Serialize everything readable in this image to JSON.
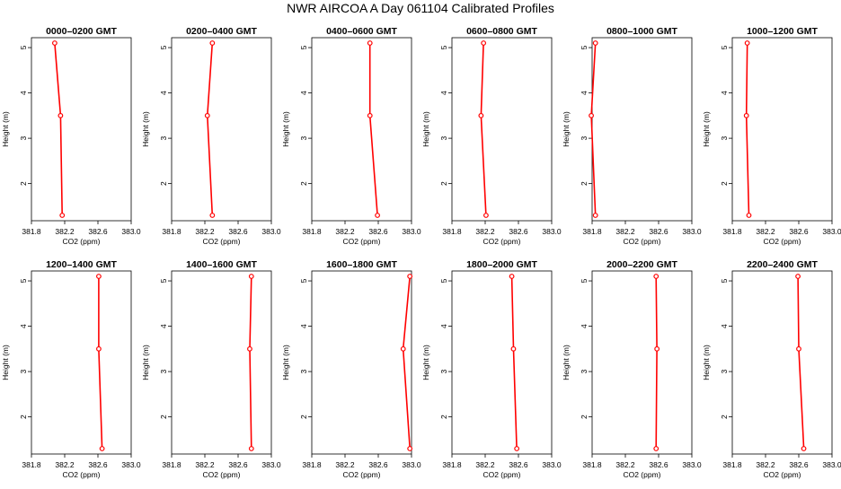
{
  "figure": {
    "title": "NWR AIRCOA A  Day 061104  Calibrated Profiles"
  },
  "colors": {
    "series": "#ff0000",
    "axis": "#000000"
  },
  "chart_data": [
    {
      "type": "line",
      "title": "0000–0200 GMT",
      "xlabel": "CO2 (ppm)",
      "ylabel": "Height (m)",
      "xlim": [
        381.8,
        383.0
      ],
      "ylim": [
        1.3,
        5.1
      ],
      "xticks": [
        "381.8",
        "382.2",
        "382.6",
        "383.0"
      ],
      "yticks": [
        "2",
        "3",
        "4",
        "5"
      ],
      "series": [
        {
          "x": [
            382.08,
            382.15,
            382.17
          ],
          "y": [
            5.1,
            3.5,
            1.3
          ]
        }
      ]
    },
    {
      "type": "line",
      "title": "0200–0400 GMT",
      "xlabel": "CO2 (ppm)",
      "ylabel": "Height (m)",
      "xlim": [
        381.8,
        383.0
      ],
      "ylim": [
        1.3,
        5.1
      ],
      "xticks": [
        "381.8",
        "382.2",
        "382.6",
        "383.0"
      ],
      "yticks": [
        "2",
        "3",
        "4",
        "5"
      ],
      "series": [
        {
          "x": [
            382.29,
            382.23,
            382.29
          ],
          "y": [
            5.1,
            3.5,
            1.3
          ]
        }
      ]
    },
    {
      "type": "line",
      "title": "0400–0600 GMT",
      "xlabel": "CO2 (ppm)",
      "ylabel": "Height (m)",
      "xlim": [
        381.8,
        383.0
      ],
      "ylim": [
        1.3,
        5.1
      ],
      "xticks": [
        "381.8",
        "382.2",
        "382.6",
        "383.0"
      ],
      "yticks": [
        "2",
        "3",
        "4",
        "5"
      ],
      "series": [
        {
          "x": [
            382.5,
            382.5,
            382.59
          ],
          "y": [
            5.1,
            3.5,
            1.3
          ]
        }
      ]
    },
    {
      "type": "line",
      "title": "0600–0800 GMT",
      "xlabel": "CO2 (ppm)",
      "ylabel": "Height (m)",
      "xlim": [
        381.8,
        383.0
      ],
      "ylim": [
        1.3,
        5.1
      ],
      "xticks": [
        "381.8",
        "382.2",
        "382.6",
        "383.0"
      ],
      "yticks": [
        "2",
        "3",
        "4",
        "5"
      ],
      "series": [
        {
          "x": [
            382.18,
            382.15,
            382.21
          ],
          "y": [
            5.1,
            3.5,
            1.3
          ]
        }
      ]
    },
    {
      "type": "line",
      "title": "0800–1000 GMT",
      "xlabel": "CO2 (ppm)",
      "ylabel": "Height (m)",
      "xlim": [
        381.8,
        383.0
      ],
      "ylim": [
        1.3,
        5.1
      ],
      "xticks": [
        "381.8",
        "382.2",
        "382.6",
        "383.0"
      ],
      "yticks": [
        "2",
        "3",
        "4",
        "5"
      ],
      "series": [
        {
          "x": [
            381.84,
            381.79,
            381.84
          ],
          "y": [
            5.1,
            3.5,
            1.3
          ]
        }
      ]
    },
    {
      "type": "line",
      "title": "1000–1200 GMT",
      "xlabel": "CO2 (ppm)",
      "ylabel": "Height (m)",
      "xlim": [
        381.8,
        383.0
      ],
      "ylim": [
        1.3,
        5.1
      ],
      "xticks": [
        "381.8",
        "382.2",
        "382.6",
        "383.0"
      ],
      "yticks": [
        "2",
        "3",
        "4",
        "5"
      ],
      "series": [
        {
          "x": [
            381.98,
            381.97,
            382.0
          ],
          "y": [
            5.1,
            3.5,
            1.3
          ]
        }
      ]
    },
    {
      "type": "line",
      "title": "1200–1400 GMT",
      "xlabel": "CO2 (ppm)",
      "ylabel": "Height (m)",
      "xlim": [
        381.8,
        383.0
      ],
      "ylim": [
        1.3,
        5.1
      ],
      "xticks": [
        "381.8",
        "382.2",
        "382.6",
        "383.0"
      ],
      "yticks": [
        "2",
        "3",
        "4",
        "5"
      ],
      "series": [
        {
          "x": [
            382.61,
            382.61,
            382.65
          ],
          "y": [
            5.1,
            3.5,
            1.3
          ]
        }
      ]
    },
    {
      "type": "line",
      "title": "1400–1600 GMT",
      "xlabel": "CO2 (ppm)",
      "ylabel": "Height (m)",
      "xlim": [
        381.8,
        383.0
      ],
      "ylim": [
        1.3,
        5.1
      ],
      "xticks": [
        "381.8",
        "382.2",
        "382.6",
        "383.0"
      ],
      "yticks": [
        "2",
        "3",
        "4",
        "5"
      ],
      "series": [
        {
          "x": [
            382.76,
            382.74,
            382.76
          ],
          "y": [
            5.1,
            3.5,
            1.3
          ]
        }
      ]
    },
    {
      "type": "line",
      "title": "1600–1800 GMT",
      "xlabel": "CO2 (ppm)",
      "ylabel": "Height (m)",
      "xlim": [
        381.8,
        383.0
      ],
      "ylim": [
        1.3,
        5.1
      ],
      "xticks": [
        "381.8",
        "382.2",
        "382.6",
        "383.0"
      ],
      "yticks": [
        "2",
        "3",
        "4",
        "5"
      ],
      "series": [
        {
          "x": [
            382.98,
            382.9,
            382.98
          ],
          "y": [
            5.1,
            3.5,
            1.3
          ]
        }
      ]
    },
    {
      "type": "line",
      "title": "1800–2000 GMT",
      "xlabel": "CO2 (ppm)",
      "ylabel": "Height (m)",
      "xlim": [
        381.8,
        383.0
      ],
      "ylim": [
        1.3,
        5.1
      ],
      "xticks": [
        "381.8",
        "382.2",
        "382.6",
        "383.0"
      ],
      "yticks": [
        "2",
        "3",
        "4",
        "5"
      ],
      "series": [
        {
          "x": [
            382.52,
            382.54,
            382.58
          ],
          "y": [
            5.1,
            3.5,
            1.3
          ]
        }
      ]
    },
    {
      "type": "line",
      "title": "2000–2200 GMT",
      "xlabel": "CO2 (ppm)",
      "ylabel": "Height (m)",
      "xlim": [
        381.8,
        383.0
      ],
      "ylim": [
        1.3,
        5.1
      ],
      "xticks": [
        "381.8",
        "382.2",
        "382.6",
        "383.0"
      ],
      "yticks": [
        "2",
        "3",
        "4",
        "5"
      ],
      "series": [
        {
          "x": [
            382.57,
            382.58,
            382.57
          ],
          "y": [
            5.1,
            3.5,
            1.3
          ]
        }
      ]
    },
    {
      "type": "line",
      "title": "2200–2400 GMT",
      "xlabel": "CO2 (ppm)",
      "ylabel": "Height (m)",
      "xlim": [
        381.8,
        383.0
      ],
      "ylim": [
        1.3,
        5.1
      ],
      "xticks": [
        "381.8",
        "382.2",
        "382.6",
        "383.0"
      ],
      "yticks": [
        "2",
        "3",
        "4",
        "5"
      ],
      "series": [
        {
          "x": [
            382.59,
            382.6,
            382.66
          ],
          "y": [
            5.1,
            3.5,
            1.3
          ]
        }
      ]
    }
  ]
}
